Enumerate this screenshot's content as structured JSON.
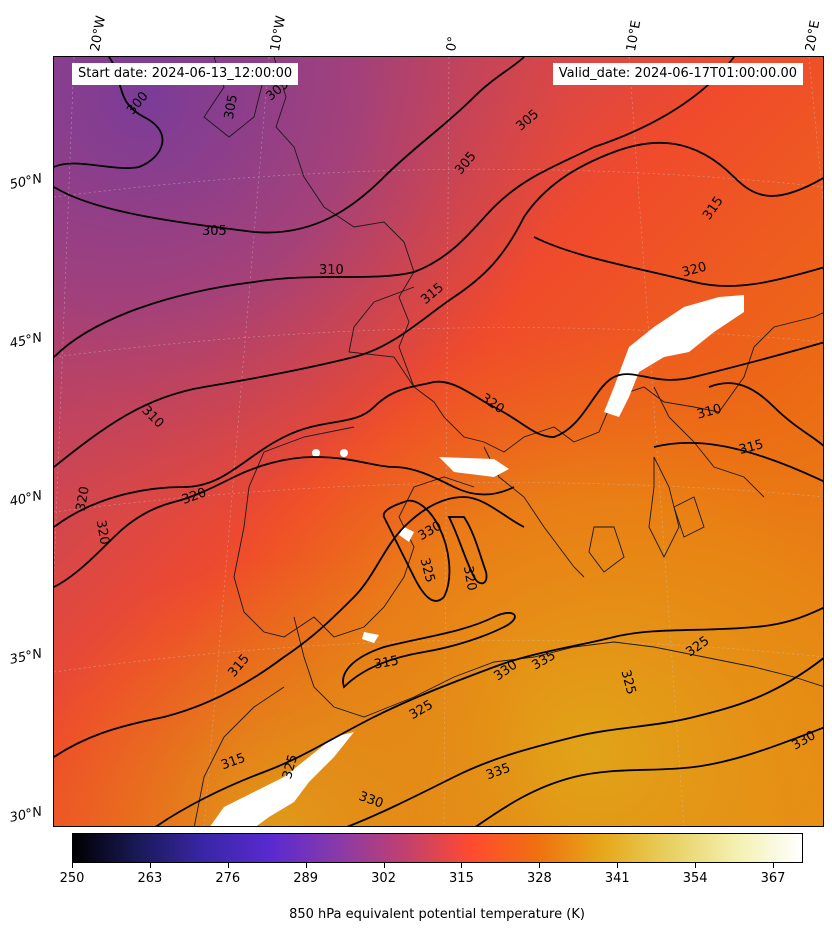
{
  "header": {
    "start_date": "Start date: 2024-06-13_12:00:00",
    "valid_date": "Valid_date: 2024-06-17T01:00:00.00"
  },
  "axes": {
    "longitude_labels": [
      "20°W",
      "10°W",
      "0°",
      "10°E",
      "20°E"
    ],
    "latitude_labels": [
      "50°N",
      "45°N",
      "40°N",
      "35°N",
      "30°N"
    ]
  },
  "map": {
    "variable": "850 hPa equivalent potential temperature",
    "units": "K",
    "contour_labels": [
      "300",
      "305",
      "305",
      "305",
      "305",
      "305",
      "310",
      "310",
      "310",
      "315",
      "315",
      "315",
      "315",
      "315",
      "315",
      "320",
      "320",
      "320",
      "320",
      "320",
      "320",
      "325",
      "325",
      "325",
      "325",
      "325",
      "330",
      "330",
      "330",
      "330",
      "335",
      "335"
    ],
    "missing_data_color": "#ffffff",
    "contour_color": "#000000"
  },
  "colorbar": {
    "title": "850 hPa equivalent potential temperature (K)",
    "ticks": [
      "250",
      "263",
      "276",
      "289",
      "302",
      "315",
      "328",
      "341",
      "354",
      "367"
    ],
    "range": [
      250,
      372
    ],
    "colormap": "CMRmap",
    "colors": [
      "#000000",
      "#1a1a5a",
      "#3a26a8",
      "#5a2ad0",
      "#8a3aa8",
      "#c04070",
      "#ff4a30",
      "#f07010",
      "#e6a81a",
      "#e8d060",
      "#f4f0b0",
      "#ffffff"
    ]
  }
}
